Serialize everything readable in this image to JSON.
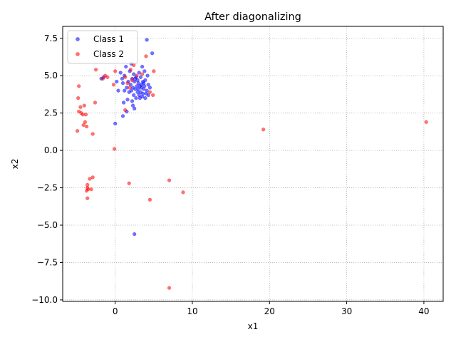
{
  "chart_data": {
    "type": "scatter",
    "title": "After diagonalizing",
    "xlabel": "x1",
    "ylabel": "x2",
    "xlim": [
      -6.8,
      42.5
    ],
    "ylim": [
      -10.1,
      8.3
    ],
    "xticks": [
      0,
      10,
      20,
      30,
      40
    ],
    "yticks": [
      -10.0,
      -7.5,
      -5.0,
      -2.5,
      0.0,
      2.5,
      5.0,
      7.5
    ],
    "grid": true,
    "legend_position": "top-left",
    "series": [
      {
        "name": "Class 1",
        "color": "#0000ff",
        "points": [
          [
            4.1,
            7.4
          ],
          [
            4.8,
            6.5
          ],
          [
            2.1,
            5.8
          ],
          [
            3.5,
            5.6
          ],
          [
            1.4,
            5.6
          ],
          [
            3.8,
            5.3
          ],
          [
            0.7,
            5.2
          ],
          [
            1.9,
            5.3
          ],
          [
            2.4,
            5.1
          ],
          [
            3.1,
            5.2
          ],
          [
            4.2,
            5.0
          ],
          [
            1.2,
            5.0
          ],
          [
            2.7,
            4.9
          ],
          [
            3.3,
            4.9
          ],
          [
            0.9,
            4.8
          ],
          [
            2.2,
            4.8
          ],
          [
            3.9,
            4.7
          ],
          [
            -1.8,
            4.8
          ],
          [
            -1.5,
            4.9
          ],
          [
            0.2,
            4.6
          ],
          [
            1.0,
            4.5
          ],
          [
            1.7,
            4.6
          ],
          [
            2.5,
            4.6
          ],
          [
            3.0,
            4.5
          ],
          [
            3.6,
            4.6
          ],
          [
            4.3,
            4.4
          ],
          [
            2.0,
            4.4
          ],
          [
            2.8,
            4.3
          ],
          [
            3.2,
            4.3
          ],
          [
            3.8,
            4.3
          ],
          [
            1.5,
            4.2
          ],
          [
            2.3,
            4.2
          ],
          [
            2.6,
            4.1
          ],
          [
            3.0,
            4.1
          ],
          [
            3.4,
            4.2
          ],
          [
            3.7,
            4.1
          ],
          [
            4.1,
            4.0
          ],
          [
            4.5,
            4.2
          ],
          [
            0.4,
            4.0
          ],
          [
            1.2,
            4.0
          ],
          [
            1.8,
            3.9
          ],
          [
            2.9,
            3.9
          ],
          [
            3.3,
            3.9
          ],
          [
            3.6,
            3.8
          ],
          [
            4.0,
            3.8
          ],
          [
            2.4,
            3.7
          ],
          [
            3.1,
            3.7
          ],
          [
            3.5,
            3.6
          ],
          [
            4.3,
            3.7
          ],
          [
            2.7,
            3.5
          ],
          [
            3.2,
            3.5
          ],
          [
            1.6,
            3.4
          ],
          [
            3.9,
            3.5
          ],
          [
            2.2,
            3.3
          ],
          [
            1.1,
            3.2
          ],
          [
            2.3,
            3.0
          ],
          [
            2.5,
            2.8
          ],
          [
            1.5,
            2.6
          ],
          [
            1.0,
            2.3
          ],
          [
            0.0,
            1.8
          ],
          [
            2.5,
            -5.6
          ],
          [
            2.6,
            4.8
          ],
          [
            3.4,
            4.4
          ],
          [
            2.9,
            4.7
          ],
          [
            3.7,
            4.5
          ],
          [
            2.1,
            4.0
          ]
        ]
      },
      {
        "name": "Class 2",
        "color": "#ff0000",
        "points": [
          [
            4.0,
            6.3
          ],
          [
            2.4,
            5.7
          ],
          [
            -2.5,
            5.4
          ],
          [
            0.0,
            5.3
          ],
          [
            2.0,
            5.4
          ],
          [
            5.0,
            5.3
          ],
          [
            -1.3,
            5.0
          ],
          [
            -1.0,
            4.9
          ],
          [
            -1.6,
            4.8
          ],
          [
            2.8,
            5.0
          ],
          [
            3.5,
            5.1
          ],
          [
            1.3,
            4.9
          ],
          [
            2.2,
            4.7
          ],
          [
            -0.2,
            4.4
          ],
          [
            1.6,
            4.5
          ],
          [
            -4.7,
            4.3
          ],
          [
            1.9,
            4.2
          ],
          [
            4.5,
            3.9
          ],
          [
            4.9,
            3.7
          ],
          [
            -4.8,
            3.5
          ],
          [
            -2.6,
            3.2
          ],
          [
            -4.0,
            3.0
          ],
          [
            -4.5,
            2.9
          ],
          [
            1.3,
            2.7
          ],
          [
            -4.7,
            2.6
          ],
          [
            -4.4,
            2.5
          ],
          [
            -4.2,
            2.4
          ],
          [
            -3.8,
            2.4
          ],
          [
            -3.9,
            1.9
          ],
          [
            -4.1,
            1.7
          ],
          [
            -3.7,
            1.6
          ],
          [
            -4.9,
            1.3
          ],
          [
            -2.9,
            1.1
          ],
          [
            19.2,
            1.4
          ],
          [
            40.3,
            1.9
          ],
          [
            -0.1,
            0.1
          ],
          [
            -2.9,
            -1.8
          ],
          [
            -3.3,
            -1.9
          ],
          [
            1.8,
            -2.2
          ],
          [
            7.0,
            -2.0
          ],
          [
            -3.6,
            -2.3
          ],
          [
            -3.6,
            -2.5
          ],
          [
            -3.5,
            -2.6
          ],
          [
            -3.1,
            -2.6
          ],
          [
            -3.7,
            -2.7
          ],
          [
            8.8,
            -2.8
          ],
          [
            -3.6,
            -3.2
          ],
          [
            4.5,
            -3.3
          ],
          [
            7.0,
            -9.2
          ]
        ]
      }
    ]
  }
}
